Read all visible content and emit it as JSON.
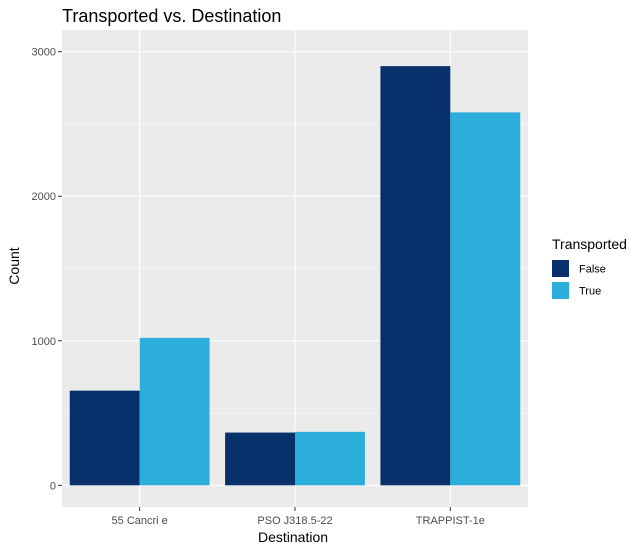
{
  "chart_data": {
    "type": "bar",
    "title": "Transported vs. Destination",
    "xlabel": "Destination",
    "ylabel": "Count",
    "categories": [
      "55 Cancri e",
      "PSO J318.5-22",
      "TRAPPIST-1e"
    ],
    "series": [
      {
        "name": "False",
        "values": [
          655,
          365,
          2900
        ],
        "color": "#08306B"
      },
      {
        "name": "True",
        "values": [
          1020,
          370,
          2580
        ],
        "color": "#2CAEDC"
      }
    ],
    "y_ticks": [
      0,
      1000,
      2000,
      3000
    ],
    "y_tick_labels": [
      "0",
      "1000",
      "2000",
      "3000"
    ],
    "ylim": [
      -150,
      3150
    ],
    "grid": true,
    "legend": {
      "title": "Transported",
      "position": "right"
    },
    "panel_background": "#EBEBEB",
    "grid_color": "#FFFFFF"
  }
}
